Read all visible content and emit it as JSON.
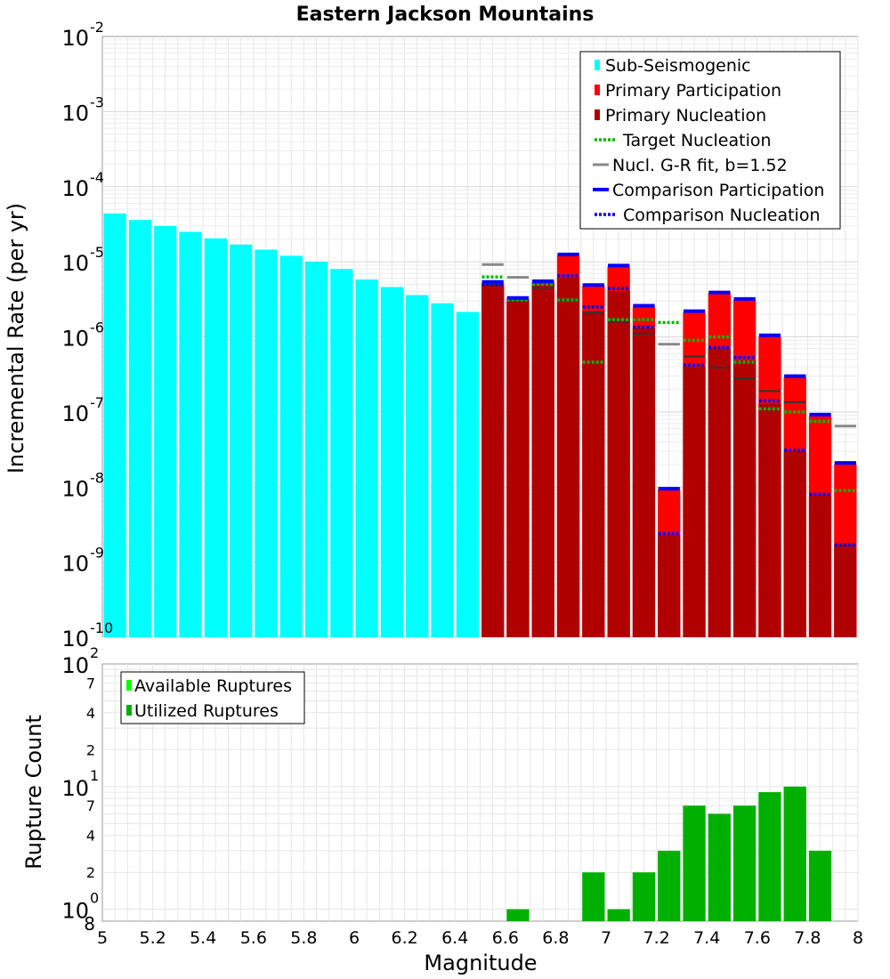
{
  "chart_data": [
    {
      "type": "bar",
      "title": "Eastern Jackson Mountains",
      "ylabel": "Incremental Rate (per yr)",
      "xlabel": "",
      "y_scale": "log",
      "ylim": [
        1e-10,
        0.01
      ],
      "xlim": [
        5,
        8
      ],
      "bin_width": 0.1,
      "y_tick_labels": [
        {
          "value": 0.01,
          "base": "10",
          "exp": "-2"
        },
        {
          "value": 0.001,
          "base": "10",
          "exp": "-3"
        },
        {
          "value": 0.0001,
          "base": "10",
          "exp": "-4"
        },
        {
          "value": 1e-05,
          "base": "10",
          "exp": "-5"
        },
        {
          "value": 1e-06,
          "base": "10",
          "exp": "-6"
        },
        {
          "value": 1e-07,
          "base": "10",
          "exp": "-7"
        },
        {
          "value": 1e-08,
          "base": "10",
          "exp": "-8"
        },
        {
          "value": 1e-09,
          "base": "10",
          "exp": "-9"
        },
        {
          "value": 1e-10,
          "base": "10",
          "exp": "-10"
        }
      ],
      "legend": [
        {
          "label": "Sub-Seismogenic",
          "style": "bar",
          "color": "#00ffff"
        },
        {
          "label": "Primary Participation",
          "style": "bar",
          "color": "#ff0000"
        },
        {
          "label": "Primary Nucleation",
          "style": "bar",
          "color": "#b00000"
        },
        {
          "label": "Target Nucleation",
          "style": "dotted",
          "color": "#00bb00"
        },
        {
          "label": "Nucl. G-R fit, b=1.52",
          "style": "solid",
          "color": "#888888"
        },
        {
          "label": "Comparison Participation",
          "style": "solid",
          "color": "#0000ff"
        },
        {
          "label": "Comparison Nucleation",
          "style": "dotted",
          "color": "#0000ff"
        }
      ],
      "legend_position": "top-right",
      "colors": {
        "sub_seismogenic": "#00ffff",
        "primary_participation": "#ff0000",
        "primary_nucleation": "#b00000",
        "target_nucleation": "#00bb00",
        "gr_fit": "#888888",
        "comparison_participation": "#0000ff",
        "comparison_nucleation": "#0000ff",
        "nucleation_mark": "#333333"
      },
      "series": [
        {
          "name": "Sub-Seismogenic",
          "x": [
            5.05,
            5.15,
            5.25,
            5.35,
            5.45,
            5.55,
            5.65,
            5.75,
            5.85,
            5.95,
            6.05,
            6.15,
            6.25,
            6.35,
            6.45
          ],
          "values": [
            4.4e-05,
            3.6e-05,
            3e-05,
            2.5e-05,
            2.05e-05,
            1.7e-05,
            1.45e-05,
            1.2e-05,
            1e-05,
            8e-06,
            5.8e-06,
            4.6e-06,
            3.6e-06,
            2.8e-06,
            2.15e-06
          ]
        },
        {
          "name": "Primary Participation",
          "x": [
            6.55,
            6.65,
            6.75,
            6.85,
            6.95,
            7.05,
            7.15,
            7.25,
            7.35,
            7.45,
            7.55,
            7.65,
            7.75,
            7.85,
            7.95
          ],
          "values": [
            5.2e-06,
            3.2e-06,
            5.4e-06,
            1.2e-05,
            4.8e-06,
            8.6e-06,
            2.5e-06,
            9.2e-09,
            2.1e-06,
            3.8e-06,
            3.1e-06,
            1e-06,
            2.9e-07,
            8.8e-08,
            2e-08
          ]
        },
        {
          "name": "Primary Nucleation",
          "x": [
            6.55,
            6.65,
            6.75,
            6.85,
            6.95,
            7.05,
            7.15,
            7.25,
            7.35,
            7.45,
            7.55,
            7.65,
            7.75,
            7.85,
            7.95
          ],
          "values": [
            4.9e-06,
            3e-06,
            5.1e-06,
            6.1e-06,
            2.2e-06,
            4.1e-06,
            1.3e-06,
            2.3e-09,
            4e-07,
            7e-07,
            4.9e-07,
            1.3e-07,
            3e-08,
            7.8e-09,
            1.7e-09
          ]
        },
        {
          "name": "Target Nucleation",
          "x": [
            6.55,
            6.65,
            6.75,
            6.85,
            6.95,
            7.05,
            7.15,
            7.25,
            7.35,
            7.45,
            7.55,
            7.65,
            7.75,
            7.85,
            7.95
          ],
          "values": [
            6.3e-06,
            3.1e-06,
            5e-06,
            3.1e-06,
            4.6e-07,
            1.7e-06,
            1.7e-06,
            1.55e-06,
            9e-07,
            1e-06,
            4.6e-07,
            1.1e-07,
            1e-07,
            7.5e-08,
            9e-09
          ]
        },
        {
          "name": "Nucl. G-R fit, b=1.52",
          "x": [
            6.55,
            6.65,
            7.25,
            7.95
          ],
          "values": [
            9.2e-06,
            6.2e-06,
            8e-07,
            6.5e-08
          ]
        },
        {
          "name": "Comparison Participation",
          "x": [
            6.55,
            6.65,
            6.75,
            6.85,
            6.95,
            7.05,
            7.15,
            7.25,
            7.35,
            7.45,
            7.55,
            7.65,
            7.75,
            7.85,
            7.95
          ],
          "values": [
            5.4e-06,
            3.3e-06,
            5.5e-06,
            1.25e-05,
            4.9e-06,
            8.9e-06,
            2.6e-06,
            9.5e-09,
            2.2e-06,
            3.9e-06,
            3.2e-06,
            1.05e-06,
            3e-07,
            9.2e-08,
            2.1e-08
          ]
        },
        {
          "name": "Comparison Nucleation",
          "x": [
            6.55,
            6.65,
            6.75,
            6.85,
            6.95,
            7.05,
            7.15,
            7.25,
            7.35,
            7.45,
            7.55,
            7.65,
            7.75,
            7.85,
            7.95
          ],
          "values": [
            5e-06,
            3.3e-06,
            5.4e-06,
            6.5e-06,
            2.5e-06,
            4.4e-06,
            1.35e-06,
            2.4e-09,
            4.2e-07,
            7.2e-07,
            5.3e-07,
            1.4e-07,
            3.1e-08,
            8e-09,
            1.7e-09
          ]
        }
      ],
      "nucleation_marks": {
        "x": [
          6.55,
          6.65,
          6.75,
          6.85,
          6.95,
          7.05,
          7.15,
          7.25,
          7.35,
          7.45,
          7.55,
          7.65,
          7.75,
          7.85,
          7.95
        ],
        "values": [
          4.9e-06,
          3e-06,
          4.5e-06,
          3.1e-06,
          2.1e-06,
          1.6e-06,
          1.1e-06,
          null,
          5.5e-07,
          3.9e-07,
          2.8e-07,
          1.9e-07,
          1.35e-07,
          null,
          null
        ]
      }
    },
    {
      "type": "bar",
      "title": "",
      "ylabel": "Rupture Count",
      "xlabel": "Magnitude",
      "y_scale": "log",
      "ylim": [
        0.8,
        100
      ],
      "xlim": [
        5,
        8
      ],
      "x_ticks": [
        5,
        5.2,
        5.4,
        5.6,
        5.8,
        6,
        6.2,
        6.4,
        6.6,
        6.8,
        7,
        7.2,
        7.4,
        7.6,
        7.8,
        8
      ],
      "x_tick_labels": [
        "5",
        "5.2",
        "5.4",
        "5.6",
        "5.8",
        "6",
        "6.2",
        "6.4",
        "6.6",
        "6.8",
        "7",
        "7.2",
        "7.4",
        "7.6",
        "7.8",
        "8"
      ],
      "y_major_ticks": [
        {
          "value": 100,
          "base": "10",
          "exp": "2"
        },
        {
          "value": 10,
          "base": "10",
          "exp": "1"
        },
        {
          "value": 1,
          "base": "10",
          "exp": "0"
        }
      ],
      "y_minor_ticks": [
        {
          "value": 70,
          "label": "7"
        },
        {
          "value": 40,
          "label": "4"
        },
        {
          "value": 20,
          "label": "2"
        },
        {
          "value": 7,
          "label": "7"
        },
        {
          "value": 4,
          "label": "4"
        },
        {
          "value": 2,
          "label": "2"
        },
        {
          "value": 0.8,
          "label": "8"
        }
      ],
      "legend": [
        {
          "label": "Available Ruptures",
          "color": "#00ff00"
        },
        {
          "label": "Utilized Ruptures",
          "color": "#00b000"
        }
      ],
      "legend_position": "top-left",
      "series": [
        {
          "name": "Utilized Ruptures",
          "x": [
            6.65,
            6.95,
            7.05,
            7.15,
            7.25,
            7.35,
            7.45,
            7.55,
            7.65,
            7.75,
            7.85
          ],
          "values": [
            1,
            2,
            1,
            2,
            3,
            7,
            6,
            7,
            9,
            10,
            3
          ]
        }
      ]
    }
  ]
}
